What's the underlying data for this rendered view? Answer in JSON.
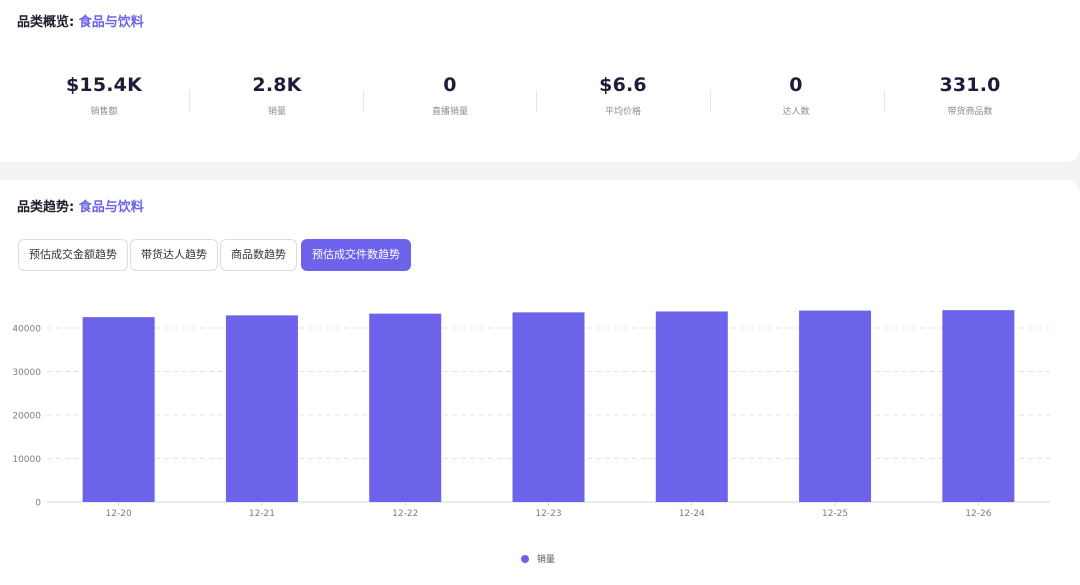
{
  "overview": {
    "title_prefix": "品类概览:",
    "category": "食品与饮料",
    "stats": [
      {
        "value": "$15.4K",
        "label": "销售额"
      },
      {
        "value": "2.8K",
        "label": "销量"
      },
      {
        "value": "0",
        "label": "直播销量"
      },
      {
        "value": "$6.6",
        "label": "平均价格"
      },
      {
        "value": "0",
        "label": "达人数"
      },
      {
        "value": "331.0",
        "label": "带货商品数"
      }
    ]
  },
  "trend": {
    "title_prefix": "品类趋势:",
    "category": "食品与饮料",
    "tabs": [
      {
        "label": "预估成交金额趋势",
        "active": false
      },
      {
        "label": "带货达人趋势",
        "active": false
      },
      {
        "label": "商品数趋势",
        "active": false
      },
      {
        "label": "预估成交件数趋势",
        "active": true
      }
    ]
  },
  "colors": {
    "accent": "#6c63ea"
  },
  "chart_data": {
    "type": "bar",
    "categories": [
      "12-20",
      "12-21",
      "12-22",
      "12-23",
      "12-24",
      "12-25",
      "12-26"
    ],
    "series": [
      {
        "name": "销量",
        "values": [
          42500,
          42900,
          43300,
          43600,
          43800,
          44000,
          44100
        ]
      }
    ],
    "ylim": [
      0,
      40000
    ],
    "yticks": [
      0,
      10000,
      20000,
      30000,
      40000
    ],
    "grid": true,
    "legend": "bottom-center"
  }
}
